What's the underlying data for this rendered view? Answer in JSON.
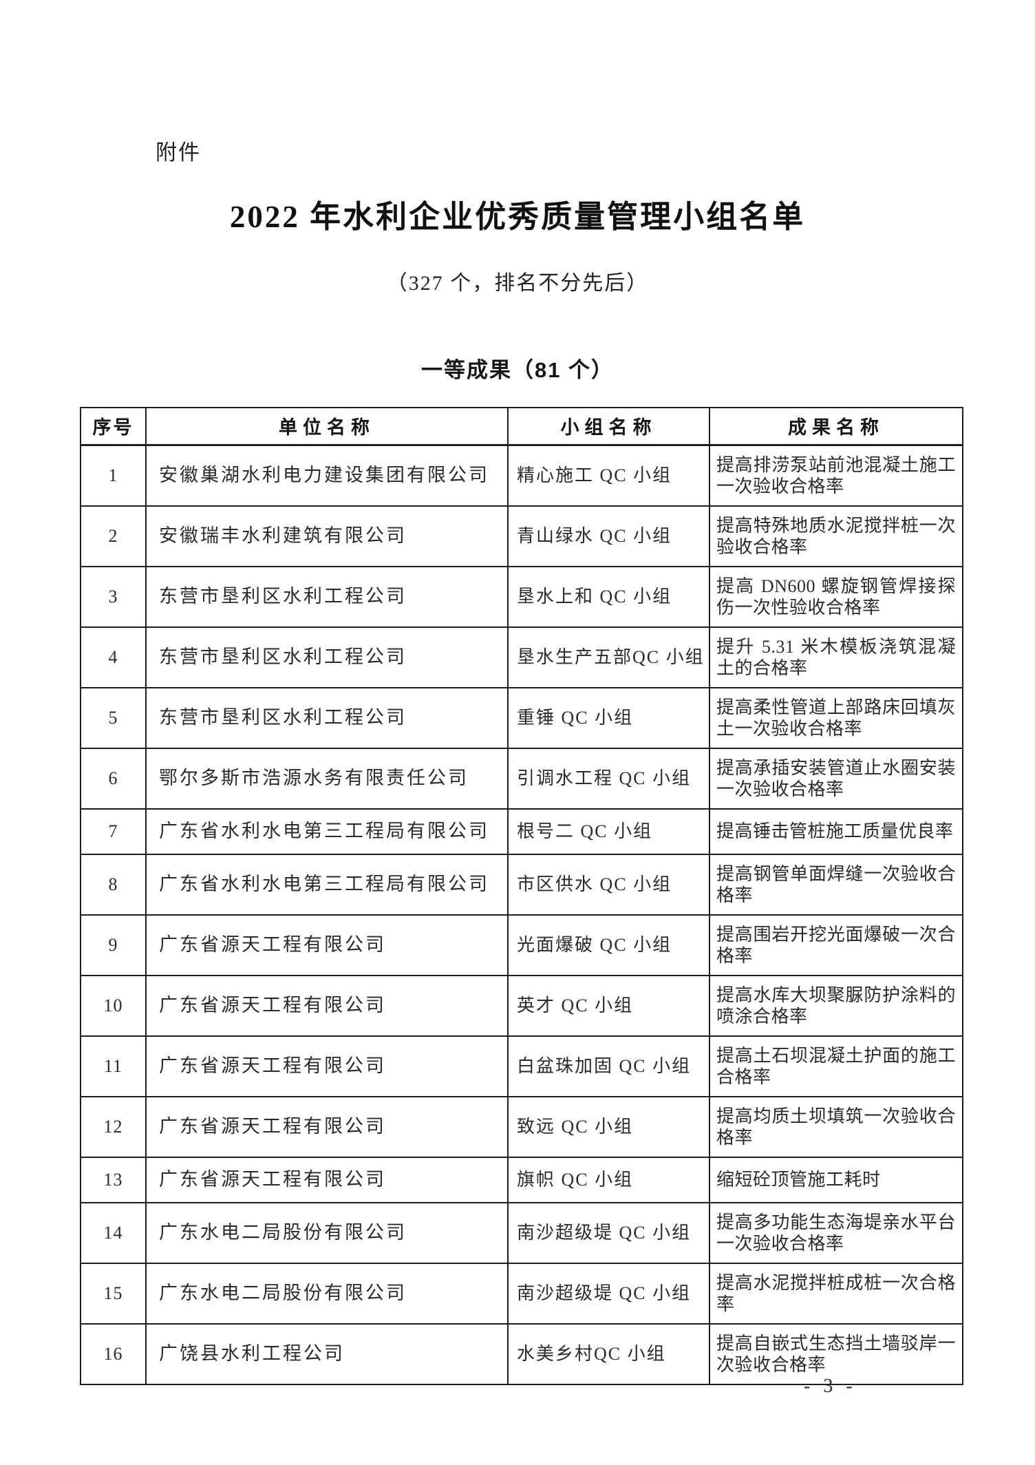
{
  "page": {
    "attachment_label": "附件",
    "title": "2022 年水利企业优秀质量管理小组名单",
    "subtitle": "（327 个，排名不分先后）",
    "section_heading": "一等成果（81 个）",
    "page_number": "- 3 -"
  },
  "table": {
    "columns": [
      "序号",
      "单位名称",
      "小组名称",
      "成果名称"
    ],
    "rows": [
      {
        "no": "1",
        "company": "安徽巢湖水利电力建设集团有限公司",
        "group": "精心施工 QC 小组",
        "result": "提高排涝泵站前池混凝土施工一次验收合格率"
      },
      {
        "no": "2",
        "company": "安徽瑞丰水利建筑有限公司",
        "group": "青山绿水 QC 小组",
        "result": "提高特殊地质水泥搅拌桩一次验收合格率"
      },
      {
        "no": "3",
        "company": "东营市垦利区水利工程公司",
        "group": "垦水上和 QC 小组",
        "result": "提高 DN600 螺旋钢管焊接探伤一次性验收合格率"
      },
      {
        "no": "4",
        "company": "东营市垦利区水利工程公司",
        "group": "垦水生产五部QC 小组",
        "result": "提升 5.31 米木模板浇筑混凝土的合格率"
      },
      {
        "no": "5",
        "company": "东营市垦利区水利工程公司",
        "group": "重锤 QC 小组",
        "result": "提高柔性管道上部路床回填灰土一次验收合格率"
      },
      {
        "no": "6",
        "company": "鄂尔多斯市浩源水务有限责任公司",
        "group": "引调水工程 QC 小组",
        "result": "提高承插安装管道止水圈安装一次验收合格率"
      },
      {
        "no": "7",
        "company": "广东省水利水电第三工程局有限公司",
        "group": "根号二 QC 小组",
        "result": "提高锤击管桩施工质量优良率"
      },
      {
        "no": "8",
        "company": "广东省水利水电第三工程局有限公司",
        "group": "市区供水 QC 小组",
        "result": "提高钢管单面焊缝一次验收合格率"
      },
      {
        "no": "9",
        "company": "广东省源天工程有限公司",
        "group": "光面爆破 QC 小组",
        "result": "提高围岩开挖光面爆破一次合格率"
      },
      {
        "no": "10",
        "company": "广东省源天工程有限公司",
        "group": "英才 QC 小组",
        "result": "提高水库大坝聚脲防护涂料的喷涂合格率"
      },
      {
        "no": "11",
        "company": "广东省源天工程有限公司",
        "group": "白盆珠加固 QC 小组",
        "result": "提高土石坝混凝土护面的施工合格率"
      },
      {
        "no": "12",
        "company": "广东省源天工程有限公司",
        "group": "致远 QC 小组",
        "result": "提高均质土坝填筑一次验收合格率"
      },
      {
        "no": "13",
        "company": "广东省源天工程有限公司",
        "group": "旗帜 QC 小组",
        "result": "缩短砼顶管施工耗时"
      },
      {
        "no": "14",
        "company": "广东水电二局股份有限公司",
        "group": "南沙超级堤 QC 小组",
        "result": "提高多功能生态海堤亲水平台一次验收合格率"
      },
      {
        "no": "15",
        "company": "广东水电二局股份有限公司",
        "group": "南沙超级堤 QC 小组",
        "result": "提高水泥搅拌桩成桩一次合格率"
      },
      {
        "no": "16",
        "company": "广饶县水利工程公司",
        "group": "水美乡村QC 小组",
        "result": "提高自嵌式生态挡土墙驳岸一次验收合格率"
      }
    ]
  }
}
